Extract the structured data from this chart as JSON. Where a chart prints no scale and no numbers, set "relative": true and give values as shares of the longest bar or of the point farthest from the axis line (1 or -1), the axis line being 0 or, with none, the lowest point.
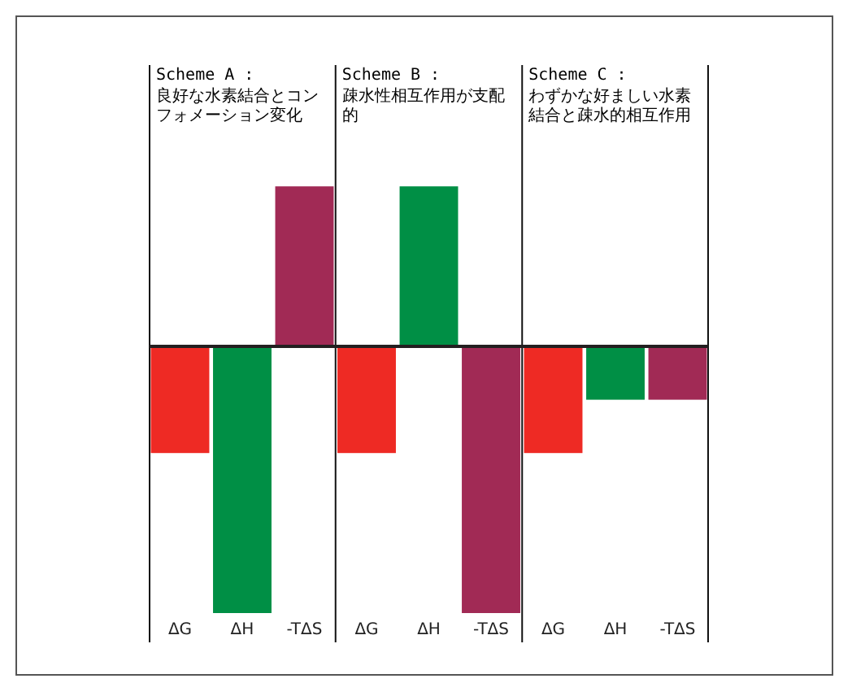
{
  "chart_data": {
    "type": "bar",
    "categories": [
      "ΔG",
      "ΔH",
      "-TΔS",
      "ΔG",
      "ΔH",
      "-TΔS",
      "ΔG",
      "ΔH",
      "-TΔS"
    ],
    "values": [
      -0.4,
      -1,
      0.6,
      -0.4,
      0.6,
      -1,
      -0.4,
      -0.2,
      -0.2
    ],
    "colors": [
      "#ee2a24",
      "#008f45",
      "#a12a55",
      "#ee2a24",
      "#008f45",
      "#a12a55",
      "#ee2a24",
      "#008f45",
      "#a12a55"
    ],
    "relative": true,
    "annotations": [
      "Scheme A :",
      "良好な水素結合とコンフォメーション変化",
      "Scheme B :",
      "疎水性相互作用が支配的",
      "Scheme C :",
      "わずかな好ましい水素結合と疎水的相互作用"
    ]
  }
}
